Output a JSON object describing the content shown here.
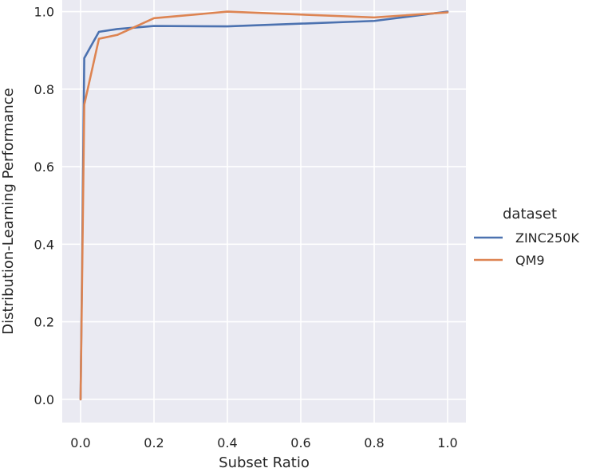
{
  "chart_data": {
    "type": "line",
    "xlabel": "Subset Ratio",
    "ylabel": "Distribution-Learning Performance",
    "xlim": [
      -0.05,
      1.05
    ],
    "ylim": [
      -0.06,
      1.03
    ],
    "xticks": [
      "0.0",
      "0.2",
      "0.4",
      "0.6",
      "0.8",
      "1.0"
    ],
    "yticks": [
      "0.0",
      "0.2",
      "0.4",
      "0.6",
      "0.8",
      "1.0"
    ],
    "grid": true,
    "legend": {
      "title": "dataset",
      "placement": "right"
    },
    "series": [
      {
        "name": "ZINC250K",
        "color": "#4c72b0",
        "x": [
          0.0,
          0.01,
          0.05,
          0.1,
          0.2,
          0.4,
          0.8,
          1.0
        ],
        "y": [
          0.0,
          0.88,
          0.948,
          0.955,
          0.963,
          0.962,
          0.976,
          1.0
        ]
      },
      {
        "name": "QM9",
        "color": "#dd8452",
        "x": [
          0.0,
          0.01,
          0.05,
          0.1,
          0.2,
          0.4,
          0.8,
          1.0
        ],
        "y": [
          0.0,
          0.76,
          0.93,
          0.94,
          0.983,
          1.0,
          0.985,
          0.998
        ]
      }
    ]
  },
  "colors": {
    "plot_background": "#eaeaf2",
    "grid": "#ffffff"
  }
}
